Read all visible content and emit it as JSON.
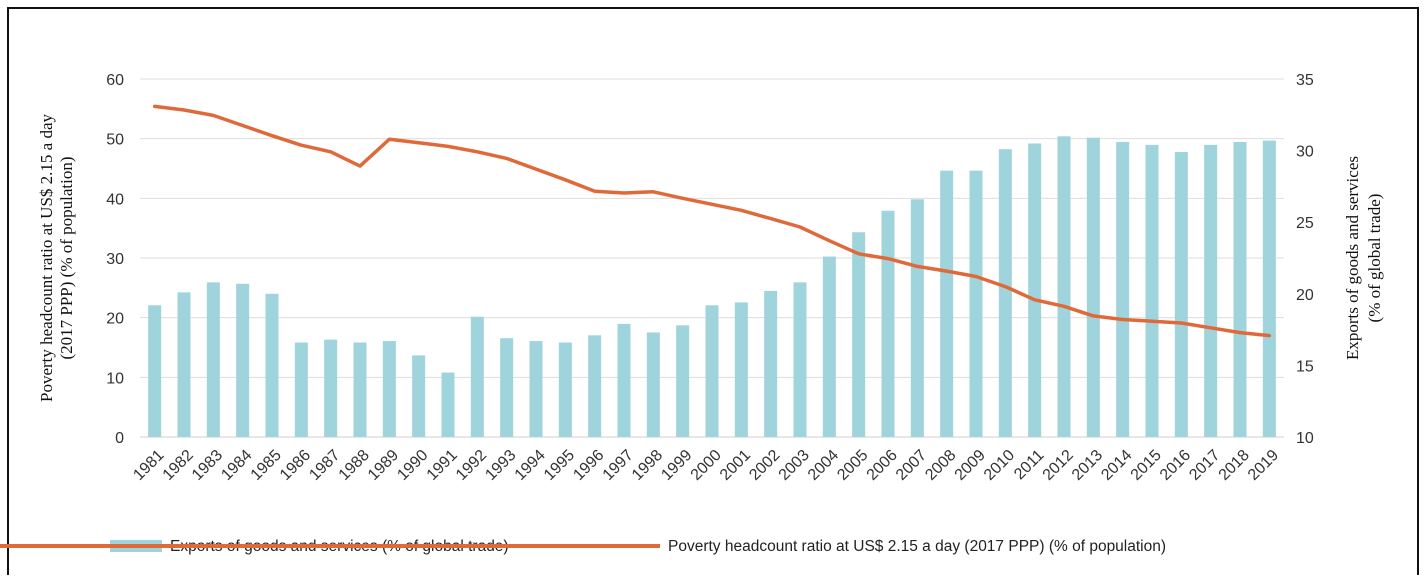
{
  "chart_data": {
    "type": "bar+line",
    "categories": [
      "1981",
      "1982",
      "1983",
      "1984",
      "1985",
      "1986",
      "1987",
      "1988",
      "1989",
      "1990",
      "1991",
      "1992",
      "1993",
      "1994",
      "1995",
      "1996",
      "1997",
      "1998",
      "1999",
      "2000",
      "2001",
      "2002",
      "2003",
      "2004",
      "2005",
      "2006",
      "2007",
      "2008",
      "2009",
      "2010",
      "2011",
      "2012",
      "2013",
      "2014",
      "2015",
      "2016",
      "2017",
      "2018",
      "2019"
    ],
    "series": [
      {
        "name": "Exports of goods and services (% of global trade)",
        "kind": "bar",
        "axis": "right",
        "color": "#9fd4dc",
        "values": [
          19.2,
          20.1,
          20.8,
          20.7,
          20.0,
          16.6,
          16.8,
          16.6,
          16.7,
          15.7,
          14.5,
          18.4,
          16.9,
          16.7,
          16.6,
          17.1,
          17.9,
          17.3,
          17.8,
          19.2,
          19.4,
          20.2,
          20.8,
          22.6,
          24.3,
          25.8,
          26.6,
          28.6,
          28.6,
          30.1,
          30.5,
          31.0,
          30.9,
          30.6,
          30.4,
          29.9,
          30.4,
          30.6,
          30.7
        ]
      },
      {
        "name": "Poverty headcount ratio at US$ 2.15 a day (2017 PPP) (% of population)",
        "kind": "line",
        "axis": "left",
        "color": "#e0693a",
        "values": [
          55.4,
          54.8,
          53.9,
          52.2,
          50.5,
          48.9,
          47.8,
          45.4,
          49.9,
          49.3,
          48.7,
          47.8,
          46.7,
          44.9,
          43.1,
          41.2,
          40.9,
          41.1,
          40.0,
          39.0,
          38.0,
          36.6,
          35.2,
          32.9,
          30.7,
          29.9,
          28.6,
          27.8,
          26.9,
          25.2,
          23.0,
          21.9,
          20.3,
          19.7,
          19.4,
          19.1,
          18.3,
          17.5,
          17.0
        ]
      }
    ],
    "left_axis": {
      "title_line1": "Poverty headcount ratio at US$ 2.15 a day",
      "title_line2": "(2017 PPP) (% of population)",
      "ylim": [
        0,
        60
      ],
      "ticks": [
        "0",
        "10",
        "20",
        "30",
        "40",
        "50",
        "60"
      ]
    },
    "right_axis": {
      "title_line1": "Exports of goods and services",
      "title_line2": "(% of global trade)",
      "ylim": [
        10,
        35
      ],
      "ticks": [
        "10",
        "15",
        "20",
        "25",
        "30",
        "35"
      ]
    },
    "grid": true,
    "legend": {
      "placement": "bottom",
      "bar_label": "Exports of goods and services (% of global trade)",
      "line_label": "Poverty headcount ratio at US$ 2.15 a day (2017 PPP) (% of population)"
    }
  }
}
